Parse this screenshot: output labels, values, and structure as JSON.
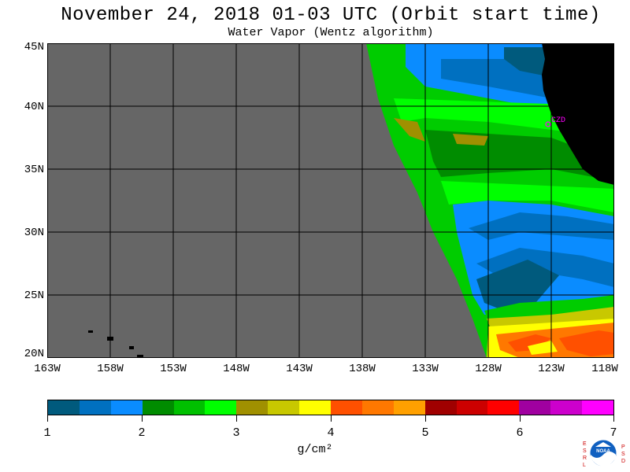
{
  "title": "November 24, 2018  01-03 UTC  (Orbit start time)",
  "subtitle": "Water Vapor (Wentz algorithm)",
  "map": {
    "lat_labels": [
      "45N",
      "40N",
      "35N",
      "30N",
      "25N",
      "20N"
    ],
    "lon_labels": [
      "163W",
      "158W",
      "153W",
      "148W",
      "143W",
      "138W",
      "133W",
      "128W",
      "123W",
      "118W"
    ],
    "lat_range": [
      20,
      45
    ],
    "lon_range": [
      -163,
      -118
    ],
    "grid": true,
    "station_label": "CZD",
    "colors": {
      "no_data": "#666666",
      "land": "#000000",
      "station": "#ff00ff"
    }
  },
  "colorbar": {
    "tick_labels": [
      "1",
      "2",
      "3",
      "4",
      "5",
      "6",
      "7"
    ],
    "units": "g/cm²",
    "colors": [
      "#005a7d",
      "#0070c0",
      "#0a8cff",
      "#008c00",
      "#00c000",
      "#00ff00",
      "#a09000",
      "#c8c800",
      "#ffff00",
      "#ff5000",
      "#ff7800",
      "#ffa000",
      "#a00000",
      "#cc0000",
      "#ff0000",
      "#a000a0",
      "#cc00cc",
      "#ff00ff"
    ]
  },
  "logo": {
    "left_letters": [
      "E",
      "S",
      "R",
      "L"
    ],
    "right_letters": [
      "P",
      "S",
      "D"
    ],
    "emblem_text": "NOAA"
  }
}
